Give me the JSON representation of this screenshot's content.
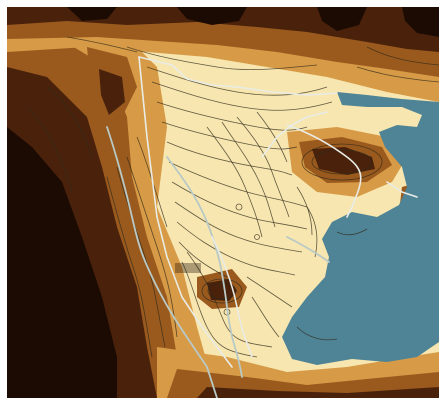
{
  "map": {
    "type": "topographic-contour-map",
    "colors": {
      "lowland": "#f7e6b0",
      "slope_light": "#d79a46",
      "slope_mid": "#9a5a1e",
      "slope_dark": "#4a220b",
      "peak": "#1c0b03",
      "water": "#4f8496",
      "contour": "#2f2a1a",
      "trail": "#e9ece6",
      "road": "#b9c9c6",
      "frame": "#ffffff"
    },
    "labels": [
      {
        "id": "label-west-peak",
        "text": ""
      },
      {
        "id": "label-center-summit",
        "text": ""
      },
      {
        "id": "label-northeast",
        "text": ""
      }
    ]
  }
}
